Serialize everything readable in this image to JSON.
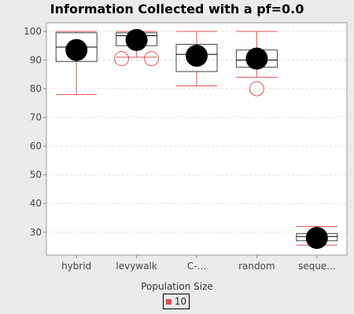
{
  "chart_data": {
    "type": "boxplot",
    "title": "Information Collected with a pf=0.0",
    "xlabel": "Population Size",
    "ylabel": "",
    "ylim": [
      22,
      103
    ],
    "yticks": [
      30,
      40,
      50,
      60,
      70,
      80,
      90,
      100
    ],
    "grid": true,
    "legend_position": "bottom",
    "categories": [
      "hybrid",
      "levywalk",
      "C-...",
      "random",
      "seque..."
    ],
    "series": [
      {
        "name": "10",
        "color": "#e05050",
        "boxes": [
          {
            "category": "hybrid",
            "whisker_low": 78,
            "q1": 89.5,
            "median": 94.5,
            "q3": 99.5,
            "whisker_high": 100,
            "mean": 93.5,
            "outliers": []
          },
          {
            "category": "levywalk",
            "whisker_low": 91,
            "q1": 95,
            "median": 98.5,
            "q3": 99.5,
            "whisker_high": 100,
            "mean": 97,
            "outliers": [
              90.5,
              90.5
            ]
          },
          {
            "category": "C-...",
            "whisker_low": 81,
            "q1": 86,
            "median": 92,
            "q3": 95.5,
            "whisker_high": 100,
            "mean": 91.5,
            "outliers": []
          },
          {
            "category": "random",
            "whisker_low": 84,
            "q1": 87.5,
            "median": 90,
            "q3": 93.5,
            "whisker_high": 100,
            "mean": 90.5,
            "outliers": [
              80
            ]
          },
          {
            "category": "seque...",
            "whisker_low": 25.5,
            "q1": 27,
            "median": 28.5,
            "q3": 29.5,
            "whisker_high": 32,
            "mean": 28,
            "outliers": [
              27
            ]
          }
        ]
      }
    ]
  }
}
